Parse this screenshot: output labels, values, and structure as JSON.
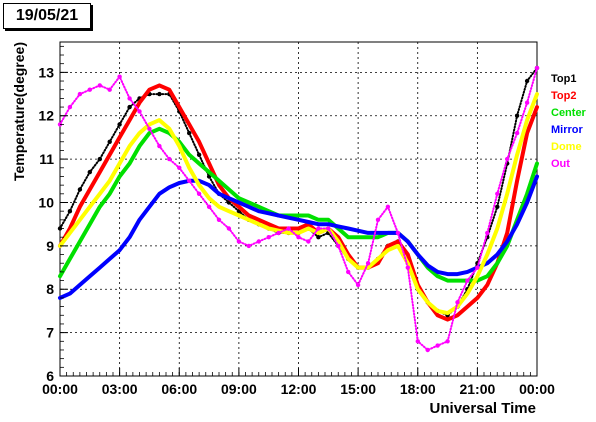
{
  "date_label": "19/05/21",
  "chart_data": {
    "type": "line",
    "title": "",
    "xlabel": "Universal Time",
    "ylabel": "Temperature(degree)",
    "xlim": [
      "00:00",
      "24:00"
    ],
    "ylim": [
      6,
      13.7
    ],
    "grid": true,
    "legend_position": "right",
    "x_ticks": [
      "00:00",
      "03:00",
      "06:00",
      "09:00",
      "12:00",
      "15:00",
      "18:00",
      "21:00",
      "00:00"
    ],
    "y_ticks": [
      6,
      7,
      8,
      9,
      10,
      11,
      12,
      13
    ],
    "series": [
      {
        "name": "Top1",
        "color": "#000000",
        "points": [
          [
            0.0,
            9.4
          ],
          [
            0.5,
            9.8
          ],
          [
            1.0,
            10.3
          ],
          [
            1.5,
            10.7
          ],
          [
            2.0,
            11.0
          ],
          [
            2.5,
            11.4
          ],
          [
            3.0,
            11.8
          ],
          [
            3.5,
            12.2
          ],
          [
            4.0,
            12.4
          ],
          [
            4.5,
            12.5
          ],
          [
            5.0,
            12.5
          ],
          [
            5.5,
            12.5
          ],
          [
            6.0,
            12.1
          ],
          [
            6.5,
            11.6
          ],
          [
            7.0,
            11.1
          ],
          [
            7.5,
            10.6
          ],
          [
            8.0,
            10.2
          ],
          [
            8.5,
            10.0
          ],
          [
            9.0,
            9.8
          ],
          [
            9.5,
            9.6
          ],
          [
            10.0,
            9.5
          ],
          [
            10.5,
            9.4
          ],
          [
            11.0,
            9.3
          ],
          [
            11.5,
            9.3
          ],
          [
            12.0,
            9.3
          ],
          [
            12.5,
            9.4
          ],
          [
            13.0,
            9.2
          ],
          [
            13.5,
            9.3
          ],
          [
            14.0,
            9.0
          ],
          [
            14.5,
            8.7
          ],
          [
            15.0,
            8.5
          ],
          [
            15.5,
            8.5
          ],
          [
            16.0,
            8.7
          ],
          [
            16.5,
            9.0
          ],
          [
            17.0,
            9.1
          ],
          [
            17.5,
            8.6
          ],
          [
            18.0,
            8.0
          ],
          [
            18.5,
            7.7
          ],
          [
            19.0,
            7.5
          ],
          [
            19.5,
            7.4
          ],
          [
            20.0,
            7.6
          ],
          [
            20.5,
            8.0
          ],
          [
            21.0,
            8.6
          ],
          [
            21.5,
            9.2
          ],
          [
            22.0,
            9.9
          ],
          [
            22.5,
            10.9
          ],
          [
            23.0,
            12.0
          ],
          [
            23.5,
            12.8
          ],
          [
            24.0,
            13.1
          ]
        ]
      },
      {
        "name": "Top2",
        "color": "#ff0000",
        "points": [
          [
            0.0,
            9.0
          ],
          [
            0.5,
            9.4
          ],
          [
            1.0,
            9.9
          ],
          [
            1.5,
            10.3
          ],
          [
            2.0,
            10.7
          ],
          [
            2.5,
            11.1
          ],
          [
            3.0,
            11.5
          ],
          [
            3.5,
            11.9
          ],
          [
            4.0,
            12.3
          ],
          [
            4.5,
            12.6
          ],
          [
            5.0,
            12.7
          ],
          [
            5.5,
            12.6
          ],
          [
            6.0,
            12.2
          ],
          [
            6.5,
            11.8
          ],
          [
            7.0,
            11.4
          ],
          [
            7.5,
            10.9
          ],
          [
            8.0,
            10.4
          ],
          [
            8.5,
            10.1
          ],
          [
            9.0,
            9.9
          ],
          [
            9.5,
            9.7
          ],
          [
            10.0,
            9.6
          ],
          [
            10.5,
            9.5
          ],
          [
            11.0,
            9.4
          ],
          [
            11.5,
            9.4
          ],
          [
            12.0,
            9.4
          ],
          [
            12.5,
            9.5
          ],
          [
            13.0,
            9.3
          ],
          [
            13.5,
            9.4
          ],
          [
            14.0,
            9.2
          ],
          [
            14.5,
            8.8
          ],
          [
            15.0,
            8.5
          ],
          [
            15.5,
            8.5
          ],
          [
            16.0,
            8.6
          ],
          [
            16.5,
            9.0
          ],
          [
            17.0,
            9.1
          ],
          [
            17.5,
            8.8
          ],
          [
            18.0,
            8.1
          ],
          [
            18.5,
            7.7
          ],
          [
            19.0,
            7.4
          ],
          [
            19.5,
            7.3
          ],
          [
            20.0,
            7.4
          ],
          [
            20.5,
            7.6
          ],
          [
            21.0,
            7.8
          ],
          [
            21.5,
            8.1
          ],
          [
            22.0,
            8.6
          ],
          [
            22.5,
            9.3
          ],
          [
            23.0,
            10.5
          ],
          [
            23.5,
            11.6
          ],
          [
            24.0,
            12.2
          ]
        ]
      },
      {
        "name": "Center",
        "color": "#00e000",
        "points": [
          [
            0.0,
            8.3
          ],
          [
            0.5,
            8.7
          ],
          [
            1.0,
            9.1
          ],
          [
            1.5,
            9.5
          ],
          [
            2.0,
            9.9
          ],
          [
            2.5,
            10.2
          ],
          [
            3.0,
            10.6
          ],
          [
            3.5,
            10.9
          ],
          [
            4.0,
            11.3
          ],
          [
            4.5,
            11.6
          ],
          [
            5.0,
            11.7
          ],
          [
            5.5,
            11.6
          ],
          [
            6.0,
            11.4
          ],
          [
            6.5,
            11.1
          ],
          [
            7.0,
            10.9
          ],
          [
            7.5,
            10.7
          ],
          [
            8.0,
            10.5
          ],
          [
            8.5,
            10.3
          ],
          [
            9.0,
            10.1
          ],
          [
            9.5,
            10.0
          ],
          [
            10.0,
            9.9
          ],
          [
            10.5,
            9.8
          ],
          [
            11.0,
            9.7
          ],
          [
            11.5,
            9.7
          ],
          [
            12.0,
            9.7
          ],
          [
            12.5,
            9.7
          ],
          [
            13.0,
            9.6
          ],
          [
            13.5,
            9.6
          ],
          [
            14.0,
            9.4
          ],
          [
            14.5,
            9.2
          ],
          [
            15.0,
            9.2
          ],
          [
            15.5,
            9.2
          ],
          [
            16.0,
            9.2
          ],
          [
            16.5,
            9.3
          ],
          [
            17.0,
            9.3
          ],
          [
            17.5,
            9.1
          ],
          [
            18.0,
            8.8
          ],
          [
            18.5,
            8.5
          ],
          [
            19.0,
            8.3
          ],
          [
            19.5,
            8.2
          ],
          [
            20.0,
            8.2
          ],
          [
            20.5,
            8.2
          ],
          [
            21.0,
            8.2
          ],
          [
            21.5,
            8.3
          ],
          [
            22.0,
            8.6
          ],
          [
            22.5,
            9.0
          ],
          [
            23.0,
            9.6
          ],
          [
            23.5,
            10.2
          ],
          [
            24.0,
            10.9
          ]
        ]
      },
      {
        "name": "Mirror",
        "color": "#0000ff",
        "points": [
          [
            0.0,
            7.8
          ],
          [
            0.5,
            7.9
          ],
          [
            1.0,
            8.1
          ],
          [
            1.5,
            8.3
          ],
          [
            2.0,
            8.5
          ],
          [
            2.5,
            8.7
          ],
          [
            3.0,
            8.9
          ],
          [
            3.5,
            9.2
          ],
          [
            4.0,
            9.6
          ],
          [
            4.5,
            9.9
          ],
          [
            5.0,
            10.2
          ],
          [
            5.5,
            10.35
          ],
          [
            6.0,
            10.45
          ],
          [
            6.5,
            10.5
          ],
          [
            7.0,
            10.5
          ],
          [
            7.5,
            10.4
          ],
          [
            8.0,
            10.2
          ],
          [
            8.5,
            10.1
          ],
          [
            9.0,
            10.0
          ],
          [
            9.5,
            9.9
          ],
          [
            10.0,
            9.8
          ],
          [
            10.5,
            9.75
          ],
          [
            11.0,
            9.7
          ],
          [
            11.5,
            9.65
          ],
          [
            12.0,
            9.6
          ],
          [
            12.5,
            9.55
          ],
          [
            13.0,
            9.5
          ],
          [
            13.5,
            9.5
          ],
          [
            14.0,
            9.45
          ],
          [
            14.5,
            9.4
          ],
          [
            15.0,
            9.35
          ],
          [
            15.5,
            9.3
          ],
          [
            16.0,
            9.3
          ],
          [
            16.5,
            9.3
          ],
          [
            17.0,
            9.3
          ],
          [
            17.5,
            9.1
          ],
          [
            18.0,
            8.8
          ],
          [
            18.5,
            8.55
          ],
          [
            19.0,
            8.4
          ],
          [
            19.5,
            8.35
          ],
          [
            20.0,
            8.35
          ],
          [
            20.5,
            8.4
          ],
          [
            21.0,
            8.5
          ],
          [
            21.5,
            8.6
          ],
          [
            22.0,
            8.8
          ],
          [
            22.5,
            9.1
          ],
          [
            23.0,
            9.5
          ],
          [
            23.5,
            10.0
          ],
          [
            24.0,
            10.6
          ]
        ]
      },
      {
        "name": "Dome",
        "color": "#ffff00",
        "points": [
          [
            0.0,
            9.0
          ],
          [
            0.5,
            9.3
          ],
          [
            1.0,
            9.6
          ],
          [
            1.5,
            9.9
          ],
          [
            2.0,
            10.2
          ],
          [
            2.5,
            10.5
          ],
          [
            3.0,
            10.9
          ],
          [
            3.5,
            11.3
          ],
          [
            4.0,
            11.6
          ],
          [
            4.5,
            11.8
          ],
          [
            5.0,
            11.9
          ],
          [
            5.5,
            11.7
          ],
          [
            6.0,
            11.3
          ],
          [
            6.5,
            10.8
          ],
          [
            7.0,
            10.4
          ],
          [
            7.5,
            10.1
          ],
          [
            8.0,
            9.9
          ],
          [
            8.5,
            9.8
          ],
          [
            9.0,
            9.7
          ],
          [
            9.5,
            9.6
          ],
          [
            10.0,
            9.5
          ],
          [
            10.5,
            9.4
          ],
          [
            11.0,
            9.35
          ],
          [
            11.5,
            9.3
          ],
          [
            12.0,
            9.3
          ],
          [
            12.5,
            9.4
          ],
          [
            13.0,
            9.3
          ],
          [
            13.5,
            9.4
          ],
          [
            14.0,
            9.1
          ],
          [
            14.5,
            8.7
          ],
          [
            15.0,
            8.5
          ],
          [
            15.5,
            8.5
          ],
          [
            16.0,
            8.7
          ],
          [
            16.5,
            8.9
          ],
          [
            17.0,
            9.0
          ],
          [
            17.5,
            8.6
          ],
          [
            18.0,
            8.0
          ],
          [
            18.5,
            7.7
          ],
          [
            19.0,
            7.5
          ],
          [
            19.5,
            7.45
          ],
          [
            20.0,
            7.6
          ],
          [
            20.5,
            7.9
          ],
          [
            21.0,
            8.3
          ],
          [
            21.5,
            8.8
          ],
          [
            22.0,
            9.4
          ],
          [
            22.5,
            10.2
          ],
          [
            23.0,
            11.1
          ],
          [
            23.5,
            11.9
          ],
          [
            24.0,
            12.5
          ]
        ]
      },
      {
        "name": "Out",
        "color": "#ff00ff",
        "points": [
          [
            0.0,
            11.8
          ],
          [
            0.5,
            12.2
          ],
          [
            1.0,
            12.5
          ],
          [
            1.5,
            12.6
          ],
          [
            2.0,
            12.7
          ],
          [
            2.5,
            12.6
          ],
          [
            3.0,
            12.9
          ],
          [
            3.5,
            12.4
          ],
          [
            4.0,
            12.1
          ],
          [
            4.5,
            11.7
          ],
          [
            5.0,
            11.3
          ],
          [
            5.5,
            11.0
          ],
          [
            6.0,
            10.8
          ],
          [
            6.5,
            10.5
          ],
          [
            7.0,
            10.2
          ],
          [
            7.5,
            9.9
          ],
          [
            8.0,
            9.6
          ],
          [
            8.5,
            9.4
          ],
          [
            9.0,
            9.1
          ],
          [
            9.5,
            9.0
          ],
          [
            10.0,
            9.1
          ],
          [
            10.5,
            9.2
          ],
          [
            11.0,
            9.3
          ],
          [
            11.5,
            9.4
          ],
          [
            12.0,
            9.2
          ],
          [
            12.5,
            9.1
          ],
          [
            13.0,
            9.4
          ],
          [
            13.5,
            9.4
          ],
          [
            14.0,
            9.0
          ],
          [
            14.5,
            8.4
          ],
          [
            15.0,
            8.1
          ],
          [
            15.5,
            8.6
          ],
          [
            16.0,
            9.6
          ],
          [
            16.5,
            9.9
          ],
          [
            17.0,
            9.3
          ],
          [
            17.5,
            8.5
          ],
          [
            18.0,
            6.8
          ],
          [
            18.5,
            6.6
          ],
          [
            19.0,
            6.7
          ],
          [
            19.5,
            6.8
          ],
          [
            20.0,
            7.7
          ],
          [
            20.5,
            8.2
          ],
          [
            21.0,
            8.5
          ],
          [
            21.5,
            9.3
          ],
          [
            22.0,
            10.2
          ],
          [
            22.5,
            11.0
          ],
          [
            23.0,
            11.6
          ],
          [
            23.5,
            12.3
          ],
          [
            24.0,
            13.1
          ]
        ]
      }
    ]
  }
}
